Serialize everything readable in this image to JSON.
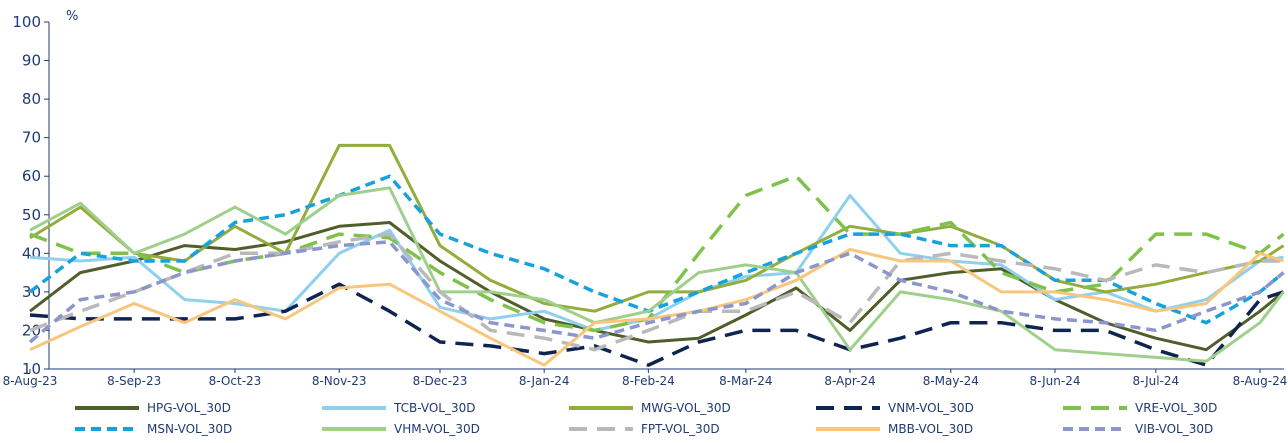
{
  "chart_data": {
    "type": "line",
    "ylabel": "%",
    "ylim": [
      10,
      100
    ],
    "yticks": [
      "100",
      "90",
      "80",
      "70",
      "60",
      "50",
      "40",
      "30",
      "20",
      "10"
    ],
    "xticks": [
      "8-Aug-23",
      "8-Sep-23",
      "8-Oct-23",
      "8-Nov-23",
      "8-Dec-23",
      "8-Jan-24",
      "8-Feb-24",
      "8-Mar-24",
      "8-Apr-24",
      "8-May-24",
      "8-Jun-24",
      "8-Jul-24",
      "8-Aug-24"
    ],
    "grid": false,
    "legend_position": "bottom",
    "x": [
      "8-Aug-23",
      "23-Aug-23",
      "8-Sep-23",
      "23-Sep-23",
      "8-Oct-23",
      "23-Oct-23",
      "8-Nov-23",
      "23-Nov-23",
      "8-Dec-23",
      "23-Dec-23",
      "8-Jan-24",
      "23-Jan-24",
      "8-Feb-24",
      "23-Feb-24",
      "8-Mar-24",
      "23-Mar-24",
      "8-Apr-24",
      "23-Apr-24",
      "8-May-24",
      "23-May-24",
      "8-Jun-24",
      "23-Jun-24",
      "8-Jul-24",
      "23-Jul-24",
      "8-Aug-24",
      "15-Aug-24"
    ],
    "series": [
      {
        "name": "HPG-VOL_30D",
        "color": "#4f5e2a",
        "dash": "solid",
        "values": [
          25,
          35,
          38,
          42,
          41,
          43,
          47,
          48,
          38,
          30,
          23,
          20,
          17,
          18,
          24,
          31,
          20,
          33,
          35,
          36,
          28,
          22,
          18,
          15,
          25,
          30
        ]
      },
      {
        "name": "TCB-VOL_30D",
        "color": "#8fd0ee",
        "dash": "solid",
        "values": [
          39,
          38,
          39,
          28,
          27,
          25,
          40,
          46,
          26,
          23,
          25,
          20,
          23,
          30,
          34,
          35,
          55,
          40,
          38,
          37,
          28,
          30,
          25,
          28,
          38,
          39
        ]
      },
      {
        "name": "MWG-VOL_30D",
        "color": "#93ad3c",
        "dash": "solid",
        "values": [
          44,
          52,
          40,
          38,
          47,
          40,
          68,
          68,
          42,
          33,
          27,
          25,
          30,
          30,
          33,
          40,
          47,
          45,
          47,
          42,
          33,
          30,
          32,
          35,
          38,
          42
        ]
      },
      {
        "name": "VNM-VOL_30D",
        "color": "#0f2451",
        "dash": "long",
        "values": [
          24,
          23,
          23,
          23,
          23,
          25,
          32,
          25,
          17,
          16,
          14,
          16,
          11,
          17,
          20,
          20,
          15,
          18,
          22,
          22,
          20,
          20,
          15,
          11,
          28,
          30
        ]
      },
      {
        "name": "VRE-VOL_30D",
        "color": "#7ec24b",
        "dash": "long",
        "values": [
          45,
          40,
          40,
          35,
          38,
          40,
          45,
          44,
          35,
          28,
          22,
          20,
          23,
          40,
          55,
          60,
          45,
          45,
          48,
          35,
          30,
          32,
          45,
          45,
          40,
          45
        ]
      },
      {
        "name": "MSN-VOL_30D",
        "color": "#17a2de",
        "dash": "medium",
        "values": [
          30,
          40,
          38,
          38,
          48,
          50,
          55,
          60,
          45,
          40,
          36,
          30,
          25,
          30,
          35,
          40,
          45,
          45,
          42,
          42,
          33,
          33,
          27,
          22,
          30,
          35
        ]
      },
      {
        "name": "VHM-VOL_30D",
        "color": "#9fd08b",
        "dash": "solid",
        "values": [
          46,
          53,
          40,
          45,
          52,
          45,
          55,
          57,
          30,
          30,
          28,
          22,
          25,
          35,
          37,
          35,
          15,
          30,
          28,
          25,
          15,
          14,
          13,
          12,
          22,
          30
        ]
      },
      {
        "name": "FPT-VOL_30D",
        "color": "#b9b9b9",
        "dash": "long",
        "values": [
          20,
          25,
          30,
          35,
          40,
          40,
          43,
          45,
          30,
          20,
          18,
          15,
          20,
          25,
          25,
          30,
          22,
          38,
          40,
          38,
          36,
          33,
          37,
          35,
          38,
          38
        ]
      },
      {
        "name": "MBB-VOL_30D",
        "color": "#f8c67c",
        "dash": "solid",
        "values": [
          15,
          21,
          27,
          22,
          28,
          23,
          31,
          32,
          25,
          18,
          11,
          22,
          23,
          25,
          28,
          33,
          41,
          38,
          38,
          30,
          30,
          28,
          25,
          27,
          40,
          38
        ]
      },
      {
        "name": "VIB-VOL_30D",
        "color": "#8c96cd",
        "dash": "medium",
        "values": [
          17,
          28,
          30,
          35,
          38,
          40,
          42,
          43,
          28,
          22,
          20,
          18,
          22,
          25,
          27,
          35,
          40,
          33,
          30,
          25,
          23,
          22,
          20,
          25,
          30,
          35
        ]
      }
    ]
  }
}
